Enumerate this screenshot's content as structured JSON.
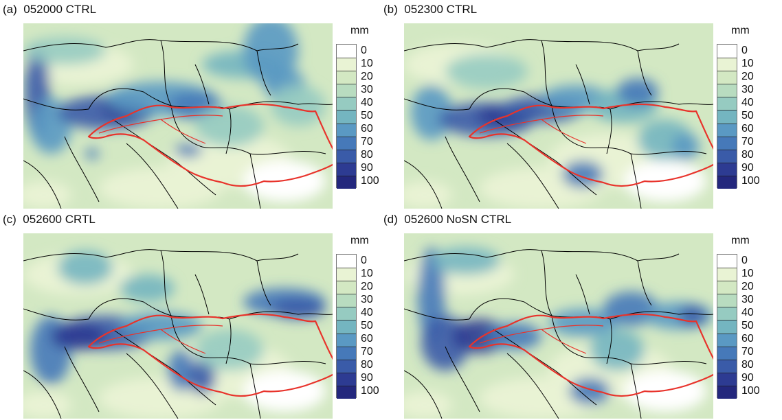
{
  "panels": [
    {
      "label": "(a)",
      "title": "052000 CTRL"
    },
    {
      "label": "(b)",
      "title": "052300 CTRL"
    },
    {
      "label": "(c)",
      "title": "052600 CRTL"
    },
    {
      "label": "(d)",
      "title": "052600 NoSN CTRL"
    }
  ],
  "legend": {
    "unit": "mm",
    "ticks": [
      "0",
      "10",
      "20",
      "30",
      "40",
      "50",
      "60",
      "70",
      "80",
      "90",
      "100"
    ],
    "colors": [
      "#ffffff",
      "#e9f3d4",
      "#d3e8c3",
      "#b8dcc0",
      "#96cbc1",
      "#74b5c0",
      "#5a99c3",
      "#4679b9",
      "#3a5ba8",
      "#2d3b92",
      "#23277d"
    ]
  },
  "colors": {
    "basin_outline": "#e8332b",
    "borders": "#000000",
    "panel_a_hotspots": "#3a5ba8",
    "panel_b_hotspots": "#2d3b92"
  }
}
